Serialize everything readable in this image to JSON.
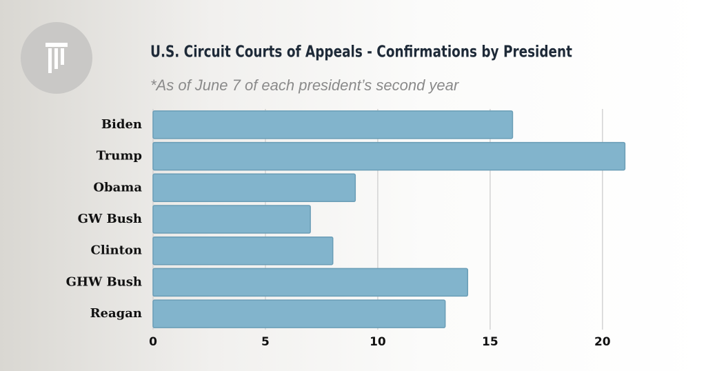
{
  "chart_data": {
    "type": "bar",
    "horizontal": true,
    "title": "U.S. Circuit Courts of Appeals - Confirmations by President",
    "subtitle": "*As of June 7 of each president’s second year",
    "categories": [
      "Biden",
      "Trump",
      "Obama",
      "GW Bush",
      "Clinton",
      "GHW Bush",
      "Reagan"
    ],
    "values": [
      16,
      21,
      9,
      7,
      8,
      14,
      13
    ],
    "color": "#82b4cc",
    "xlim": [
      0,
      22
    ],
    "xticks": [
      0,
      5,
      10,
      15,
      20
    ],
    "grid": true
  }
}
